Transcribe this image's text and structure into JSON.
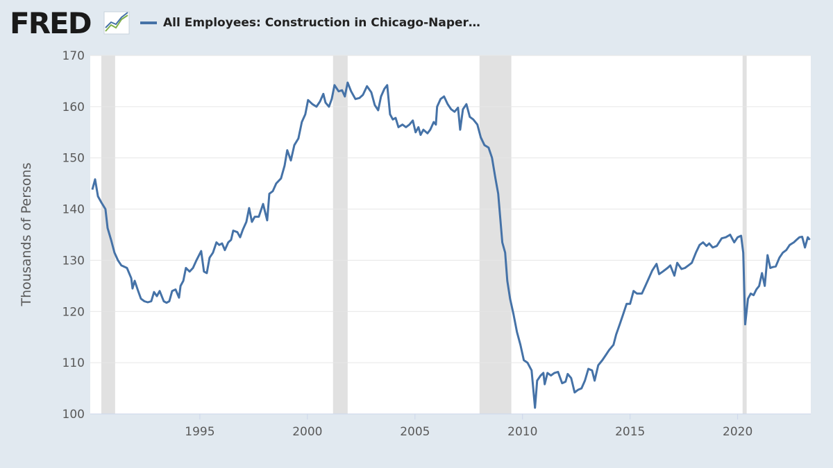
{
  "chart_data": {
    "type": "line",
    "logo": "FRED",
    "ylabel": "Thousands of Persons",
    "xlim": [
      1990,
      2023.4
    ],
    "ylim": [
      100,
      170
    ],
    "xticks": [
      1995,
      2000,
      2005,
      2010,
      2015,
      2020
    ],
    "yticks": [
      100,
      110,
      120,
      130,
      140,
      150,
      160,
      170
    ],
    "grid": true,
    "recession_color": "#e1e1e1",
    "recessions": [
      [
        1990.42,
        1991.06
      ],
      [
        2001.19,
        2001.87
      ],
      [
        2008.0,
        2009.48
      ],
      [
        2020.23,
        2020.42
      ]
    ],
    "x": [
      1990.0,
      1990.13,
      1990.26,
      1990.42,
      1990.61,
      1990.71,
      1990.87,
      1991.03,
      1991.19,
      1991.35,
      1991.61,
      1991.81,
      1991.87,
      1991.97,
      1992.13,
      1992.26,
      1992.42,
      1992.58,
      1992.74,
      1992.87,
      1993.0,
      1993.13,
      1993.32,
      1993.45,
      1993.58,
      1993.71,
      1993.87,
      1994.03,
      1994.1,
      1994.23,
      1994.35,
      1994.52,
      1994.68,
      1994.84,
      1995.06,
      1995.19,
      1995.32,
      1995.45,
      1995.61,
      1995.77,
      1995.9,
      1996.03,
      1996.16,
      1996.32,
      1996.45,
      1996.55,
      1996.74,
      1996.87,
      1997.0,
      1997.16,
      1997.29,
      1997.42,
      1997.55,
      1997.74,
      1997.94,
      1998.13,
      1998.23,
      1998.39,
      1998.55,
      1998.77,
      1998.94,
      1999.06,
      1999.23,
      1999.39,
      1999.58,
      1999.74,
      1999.9,
      2000.03,
      2000.23,
      2000.42,
      2000.58,
      2000.74,
      2000.84,
      2001.0,
      2001.13,
      2001.26,
      2001.45,
      2001.61,
      2001.74,
      2001.87,
      2002.03,
      2002.23,
      2002.42,
      2002.58,
      2002.77,
      2002.97,
      2003.13,
      2003.29,
      2003.42,
      2003.58,
      2003.71,
      2003.84,
      2003.97,
      2004.1,
      2004.23,
      2004.42,
      2004.58,
      2004.74,
      2004.9,
      2005.03,
      2005.16,
      2005.26,
      2005.39,
      2005.58,
      2005.71,
      2005.87,
      2005.97,
      2006.03,
      2006.19,
      2006.35,
      2006.52,
      2006.68,
      2006.84,
      2007.0,
      2007.1,
      2007.23,
      2007.39,
      2007.55,
      2007.71,
      2007.9,
      2008.06,
      2008.23,
      2008.42,
      2008.58,
      2008.74,
      2008.87,
      2008.97,
      2009.06,
      2009.19,
      2009.29,
      2009.42,
      2009.58,
      2009.74,
      2009.9,
      2010.06,
      2010.23,
      2010.42,
      2010.58,
      2010.68,
      2010.84,
      2010.97,
      2011.03,
      2011.16,
      2011.32,
      2011.48,
      2011.65,
      2011.84,
      2012.0,
      2012.1,
      2012.26,
      2012.42,
      2012.58,
      2012.74,
      2012.9,
      2013.06,
      2013.23,
      2013.35,
      2013.52,
      2013.71,
      2013.87,
      2014.03,
      2014.23,
      2014.35,
      2014.52,
      2014.68,
      2014.84,
      2015.0,
      2015.16,
      2015.32,
      2015.55,
      2015.71,
      2015.87,
      2016.03,
      2016.23,
      2016.35,
      2016.52,
      2016.74,
      2016.87,
      2017.06,
      2017.19,
      2017.39,
      2017.55,
      2017.71,
      2017.87,
      2018.06,
      2018.23,
      2018.39,
      2018.55,
      2018.68,
      2018.84,
      2019.03,
      2019.26,
      2019.45,
      2019.65,
      2019.84,
      2020.0,
      2020.16,
      2020.26,
      2020.35,
      2020.48,
      2020.61,
      2020.74,
      2020.87,
      2021.0,
      2021.13,
      2021.26,
      2021.39,
      2021.52,
      2021.65,
      2021.77,
      2021.94,
      2022.1,
      2022.26,
      2022.42,
      2022.61,
      2022.74,
      2022.87,
      2023.0,
      2023.13,
      2023.26,
      2023.35
    ],
    "series": [
      {
        "name": "All Employees: Construction in Chicago-Naper…",
        "color": "#4572a7",
        "values": [
          143.8,
          145.8,
          142.5,
          141.3,
          140,
          136.3,
          134,
          131.5,
          130,
          129,
          128.5,
          126.5,
          124.5,
          126,
          124,
          122.5,
          122,
          121.8,
          122,
          123.8,
          123,
          124,
          122,
          121.7,
          122,
          124,
          124.3,
          122.7,
          125,
          126,
          128.5,
          127.8,
          128.5,
          130,
          131.8,
          127.8,
          127.5,
          130.5,
          131.5,
          133.5,
          133,
          133.3,
          132,
          133.5,
          134,
          135.8,
          135.5,
          134.5,
          136,
          137.5,
          140.2,
          137.5,
          138.5,
          138.5,
          141,
          137.8,
          143,
          143.5,
          145,
          146,
          148.5,
          151.5,
          149.5,
          152.5,
          153.8,
          157,
          158.5,
          161.3,
          160.5,
          160,
          161,
          162.5,
          160.8,
          160,
          161.5,
          164.2,
          163,
          163.2,
          162,
          164.7,
          163,
          161.5,
          161.7,
          162.3,
          164,
          162.8,
          160.3,
          159.3,
          162,
          163.5,
          164.2,
          158.5,
          157.5,
          157.8,
          156,
          156.5,
          156,
          156.5,
          157.3,
          155,
          156,
          154.5,
          155.5,
          154.8,
          155.5,
          157,
          156.5,
          160,
          161.5,
          162,
          160.5,
          159.5,
          159,
          159.8,
          155.5,
          159.5,
          160.5,
          158,
          157.5,
          156.5,
          154,
          152.5,
          152,
          150,
          146,
          143,
          138,
          133.5,
          131.5,
          126,
          122.5,
          119.5,
          116,
          113.5,
          110.5,
          110,
          108.5,
          101.2,
          106.5,
          107.5,
          108,
          105.8,
          108,
          107.5,
          108,
          108.2,
          106,
          106.3,
          107.8,
          107,
          104.2,
          104.7,
          105,
          106.5,
          108.8,
          108.5,
          106.5,
          109.5,
          110.5,
          111.5,
          112.5,
          113.5,
          115.5,
          117.5,
          119.5,
          121.5,
          121.5,
          124,
          123.5,
          123.5,
          125,
          126.5,
          128,
          129.3,
          127.3,
          127.8,
          128.5,
          129,
          127,
          129.5,
          128.3,
          128.5,
          129,
          129.5,
          131.5,
          133,
          133.5,
          132.8,
          133.3,
          132.5,
          132.8,
          134.3,
          134.5,
          135,
          133.5,
          134.5,
          134.8,
          131.5,
          117.5,
          122.5,
          123.5,
          123.2,
          124.3,
          125,
          127.5,
          125,
          131,
          128.5,
          128.7,
          128.8,
          130.5,
          131.5,
          132,
          133,
          133.5,
          134,
          134.5,
          134.6,
          132.5,
          134.5,
          134
        ]
      }
    ]
  }
}
